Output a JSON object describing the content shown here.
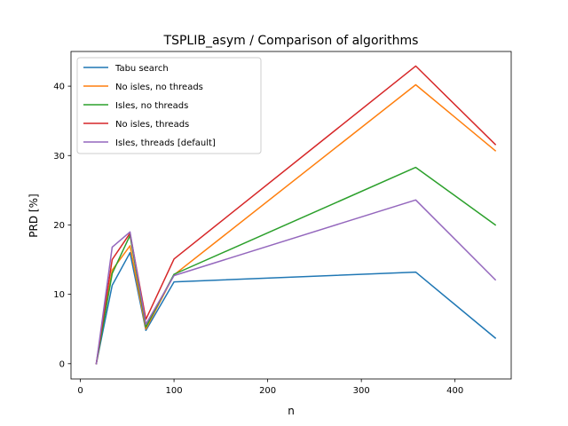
{
  "chart_data": {
    "type": "line",
    "title": "TSPLIB_asym / Comparison of algorithms",
    "xlabel": "n",
    "ylabel": "PRD [%]",
    "xlim": [
      -10,
      460
    ],
    "ylim": [
      -2.2,
      45
    ],
    "xticks": [
      0,
      100,
      200,
      300,
      400
    ],
    "yticks": [
      0,
      10,
      20,
      30,
      40
    ],
    "grid": false,
    "legend_position": "upper-left",
    "x": [
      17,
      34,
      53,
      70,
      100,
      358,
      443
    ],
    "series": [
      {
        "name": "Tabu search",
        "color": "#1f77b4",
        "values": [
          0,
          11.3,
          16.0,
          4.8,
          11.8,
          13.2,
          3.7
        ]
      },
      {
        "name": "No isles, no threads",
        "color": "#ff7f0e",
        "values": [
          0,
          13.5,
          17.0,
          5.0,
          12.8,
          40.2,
          30.7
        ]
      },
      {
        "name": "Isles, no threads",
        "color": "#2ca02c",
        "values": [
          0,
          13.0,
          18.5,
          5.3,
          12.9,
          28.3,
          20.0
        ]
      },
      {
        "name": "No isles, threads",
        "color": "#d62728",
        "values": [
          0,
          15.0,
          18.8,
          6.4,
          15.1,
          42.9,
          31.6
        ]
      },
      {
        "name": "Isles, threads [default]",
        "color": "#9467bd",
        "values": [
          0,
          16.8,
          19.0,
          5.7,
          12.7,
          23.6,
          12.1
        ]
      }
    ]
  }
}
